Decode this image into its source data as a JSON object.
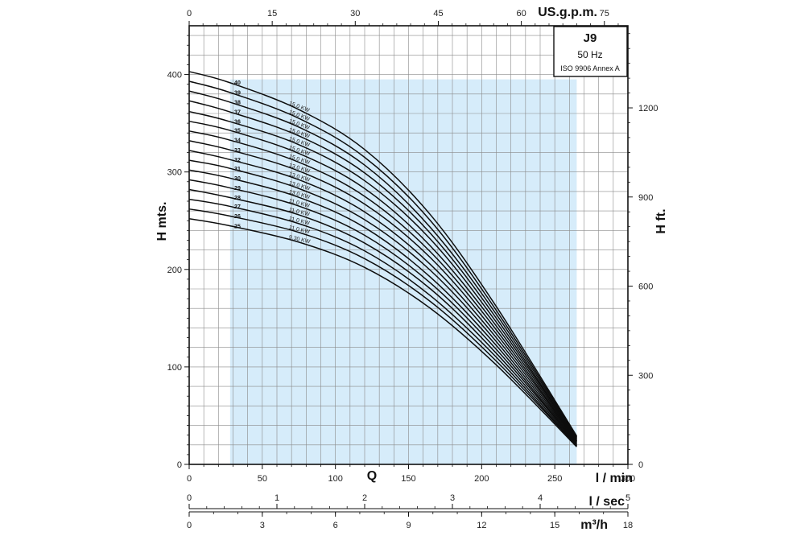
{
  "chart_data": {
    "type": "line",
    "title_box": {
      "model": "J9",
      "frequency": "50 Hz",
      "standard": "ISO 9906 Annex A"
    },
    "ylabel_left": "H mts.",
    "ylabel_right": "H ft.",
    "xlabel": "Q",
    "x_units": {
      "primary": "l / min",
      "top": "US.g.p.m.",
      "sec": "l / sec",
      "m3h": "m³/h"
    },
    "xlim": [
      0,
      300
    ],
    "ylim": [
      0,
      400
    ],
    "ylim_display": [
      0,
      400
    ],
    "y_ticks": [
      0,
      100,
      200,
      300,
      400
    ],
    "y_ticks_ft": [
      0,
      300,
      600,
      900,
      1200
    ],
    "x_ticks_lmin": [
      0,
      50,
      100,
      150,
      200,
      250,
      300
    ],
    "x_ticks_gpm": [
      0,
      15,
      30,
      45,
      60,
      75
    ],
    "x_ticks_lsec": [
      0,
      1,
      2,
      3,
      4,
      5
    ],
    "x_ticks_m3h": [
      0,
      3,
      6,
      9,
      12,
      15,
      18
    ],
    "operating_range_lmin": [
      28,
      265
    ],
    "grid": true,
    "series": [
      {
        "name": "25",
        "power": "9.30 KW",
        "values": [
          [
            0,
            252
          ],
          [
            27,
            245
          ],
          [
            75,
            228
          ],
          [
            120,
            202
          ],
          [
            165,
            160
          ],
          [
            210,
            102
          ],
          [
            265,
            18
          ]
        ]
      },
      {
        "name": "26",
        "power": "11.0 KW",
        "values": [
          [
            0,
            262
          ],
          [
            27,
            255
          ],
          [
            75,
            238
          ],
          [
            120,
            211
          ],
          [
            165,
            167
          ],
          [
            210,
            106
          ],
          [
            265,
            19
          ]
        ]
      },
      {
        "name": "27",
        "power": "11.0 KW",
        "values": [
          [
            0,
            272
          ],
          [
            27,
            265
          ],
          [
            75,
            247
          ],
          [
            120,
            219
          ],
          [
            165,
            173
          ],
          [
            210,
            110
          ],
          [
            265,
            19
          ]
        ]
      },
      {
        "name": "28",
        "power": "11.0 KW",
        "values": [
          [
            0,
            282
          ],
          [
            27,
            274
          ],
          [
            75,
            256
          ],
          [
            120,
            227
          ],
          [
            165,
            180
          ],
          [
            210,
            114
          ],
          [
            265,
            20
          ]
        ]
      },
      {
        "name": "29",
        "power": "11.0 KW",
        "values": [
          [
            0,
            292
          ],
          [
            27,
            284
          ],
          [
            75,
            265
          ],
          [
            120,
            235
          ],
          [
            165,
            186
          ],
          [
            210,
            118
          ],
          [
            265,
            21
          ]
        ]
      },
      {
        "name": "30",
        "power": "13.0 KW",
        "values": [
          [
            0,
            302
          ],
          [
            27,
            294
          ],
          [
            75,
            274
          ],
          [
            120,
            243
          ],
          [
            165,
            192
          ],
          [
            210,
            122
          ],
          [
            265,
            21
          ]
        ]
      },
      {
        "name": "31",
        "power": "13.0 KW",
        "values": [
          [
            0,
            312
          ],
          [
            27,
            304
          ],
          [
            75,
            283
          ],
          [
            120,
            251
          ],
          [
            165,
            199
          ],
          [
            210,
            126
          ],
          [
            265,
            22
          ]
        ]
      },
      {
        "name": "32",
        "power": "13.0 KW",
        "values": [
          [
            0,
            322
          ],
          [
            27,
            313
          ],
          [
            75,
            292
          ],
          [
            120,
            259
          ],
          [
            165,
            205
          ],
          [
            210,
            130
          ],
          [
            265,
            23
          ]
        ]
      },
      {
        "name": "33",
        "power": "13.0 KW",
        "values": [
          [
            0,
            332
          ],
          [
            27,
            323
          ],
          [
            75,
            301
          ],
          [
            120,
            267
          ],
          [
            165,
            212
          ],
          [
            210,
            134
          ],
          [
            265,
            24
          ]
        ]
      },
      {
        "name": "34",
        "power": "15.0 KW",
        "values": [
          [
            0,
            342
          ],
          [
            27,
            333
          ],
          [
            75,
            310
          ],
          [
            120,
            275
          ],
          [
            165,
            218
          ],
          [
            210,
            138
          ],
          [
            265,
            24
          ]
        ]
      },
      {
        "name": "35",
        "power": "15.0 KW",
        "values": [
          [
            0,
            352
          ],
          [
            27,
            343
          ],
          [
            75,
            319
          ],
          [
            120,
            283
          ],
          [
            165,
            224
          ],
          [
            210,
            142
          ],
          [
            265,
            25
          ]
        ]
      },
      {
        "name": "36",
        "power": "15.0 KW",
        "values": [
          [
            0,
            362
          ],
          [
            27,
            352
          ],
          [
            75,
            328
          ],
          [
            120,
            291
          ],
          [
            165,
            231
          ],
          [
            210,
            146
          ],
          [
            265,
            26
          ]
        ]
      },
      {
        "name": "37",
        "power": "15.0 KW",
        "values": [
          [
            0,
            373
          ],
          [
            27,
            362
          ],
          [
            75,
            337
          ],
          [
            120,
            299
          ],
          [
            165,
            237
          ],
          [
            210,
            150
          ],
          [
            265,
            26
          ]
        ]
      },
      {
        "name": "38",
        "power": "15.0 KW",
        "values": [
          [
            0,
            383
          ],
          [
            27,
            372
          ],
          [
            75,
            346
          ],
          [
            120,
            307
          ],
          [
            165,
            243
          ],
          [
            210,
            154
          ],
          [
            265,
            27
          ]
        ]
      },
      {
        "name": "39",
        "power": "15.0 KW",
        "values": [
          [
            0,
            393
          ],
          [
            27,
            382
          ],
          [
            75,
            355
          ],
          [
            120,
            315
          ],
          [
            165,
            250
          ],
          [
            210,
            158
          ],
          [
            265,
            28
          ]
        ]
      },
      {
        "name": "40",
        "power": "15.0 KW",
        "values": [
          [
            0,
            403
          ],
          [
            27,
            392
          ],
          [
            75,
            364
          ],
          [
            120,
            323
          ],
          [
            165,
            256
          ],
          [
            210,
            162
          ],
          [
            265,
            29
          ]
        ]
      }
    ]
  }
}
